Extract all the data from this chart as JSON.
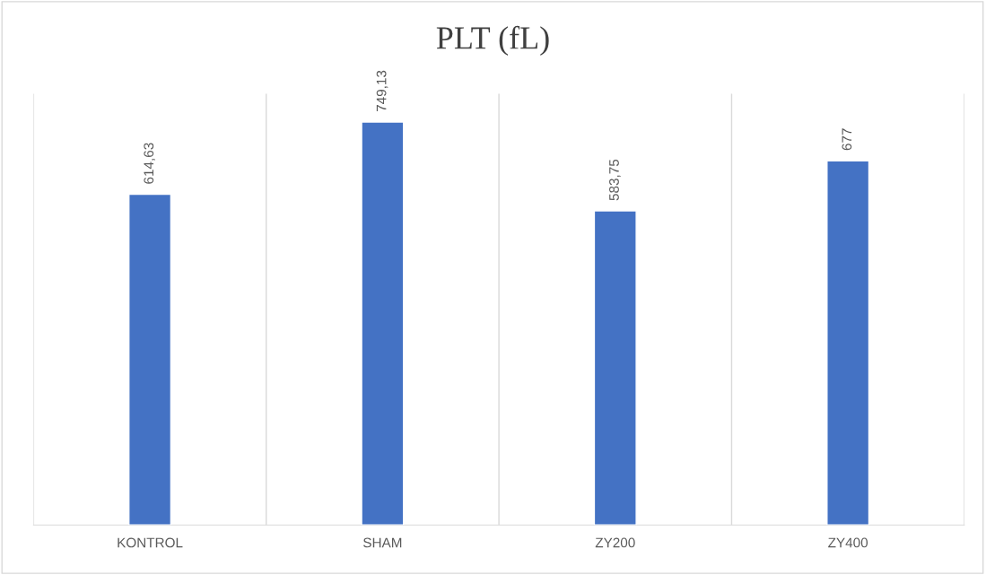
{
  "chart_data": {
    "type": "bar",
    "title": "PLT (fL)",
    "categories": [
      "KONTROL",
      "SHAM",
      "ZY200",
      "ZY400"
    ],
    "values": [
      614.63,
      749.13,
      583.75,
      677
    ],
    "value_labels": [
      "614,63",
      "749,13",
      "583,75",
      "677"
    ],
    "color": "#4472c4",
    "grid": "x"
  }
}
